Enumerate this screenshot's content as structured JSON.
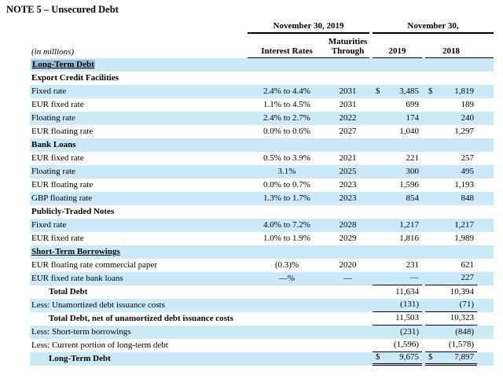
{
  "title": "NOTE 5 – Unsecured Debt",
  "colors": {
    "row_blue": "#cce9f8",
    "text_highlight": "#98bcd4",
    "rule": "#000000"
  },
  "table": {
    "units_caption": "(in millions)",
    "currency_symbol": "$",
    "group_headers": [
      {
        "label": "November 30, 2019"
      },
      {
        "label": "November 30,"
      }
    ],
    "columns": [
      "Interest Rates",
      "Maturities Through",
      "2019",
      "2018"
    ],
    "rows": [
      {
        "label": "Long-Term Debt",
        "rates": "",
        "maturity": "",
        "v2019": "",
        "v2018": "",
        "bold": true,
        "underline": true,
        "highlight": true
      },
      {
        "label": "Export Credit Facilities",
        "rates": "",
        "maturity": "",
        "v2019": "",
        "v2018": "",
        "bold": true
      },
      {
        "label": "Fixed rate",
        "rates": "2.4% to 4.4%",
        "maturity": "2031",
        "v2019": "3,485",
        "v2018": "1,819",
        "dollar": true
      },
      {
        "label": "EUR fixed rate",
        "rates": "1.1% to 4.5%",
        "maturity": "2031",
        "v2019": "699",
        "v2018": "189"
      },
      {
        "label": "Floating rate",
        "rates": "2.4% to 2.7%",
        "maturity": "2022",
        "v2019": "174",
        "v2018": "240"
      },
      {
        "label": "EUR floating rate",
        "rates": "0.0% to 0.6%",
        "maturity": "2027",
        "v2019": "1,040",
        "v2018": "1,297"
      },
      {
        "label": "Bank Loans",
        "rates": "",
        "maturity": "",
        "v2019": "",
        "v2018": "",
        "bold": true
      },
      {
        "label": "EUR fixed rate",
        "rates": "0.5% to 3.9%",
        "maturity": "2021",
        "v2019": "221",
        "v2018": "257"
      },
      {
        "label": "Floating rate",
        "rates": "3.1%",
        "maturity": "2025",
        "v2019": "300",
        "v2018": "495"
      },
      {
        "label": "EUR floating rate",
        "rates": "0.0% to 0.7%",
        "maturity": "2023",
        "v2019": "1,596",
        "v2018": "1,193"
      },
      {
        "label": "GBP floating rate",
        "rates": "1.3% to 1.7%",
        "maturity": "2023",
        "v2019": "854",
        "v2018": "848"
      },
      {
        "label": "Publicly-Traded Notes",
        "rates": "",
        "maturity": "",
        "v2019": "",
        "v2018": "",
        "bold": true
      },
      {
        "label": "Fixed rate",
        "rates": "4.0% to 7.2%",
        "maturity": "2028",
        "v2019": "1,217",
        "v2018": "1,217"
      },
      {
        "label": "EUR fixed rate",
        "rates": "1.0% to 1.9%",
        "maturity": "2029",
        "v2019": "1,816",
        "v2018": "1,989"
      },
      {
        "label": "Short-Term Borrowings",
        "rates": "",
        "maturity": "",
        "v2019": "",
        "v2018": "",
        "bold": true,
        "underline": true
      },
      {
        "label": "EUR floating rate commercial paper",
        "rates": "(0.3)%",
        "maturity": "2020",
        "v2019": "231",
        "v2018": "621"
      },
      {
        "label": "EUR fixed rate bank loans",
        "rates": "—%",
        "maturity": "—",
        "v2019": "—",
        "v2018": "227",
        "rule": "single"
      },
      {
        "label": "Total Debt",
        "rates": "",
        "maturity": "",
        "v2019": "11,634",
        "v2018": "10,394",
        "bold": true,
        "indent": true
      },
      {
        "label": "Less: Unamortized debt issuance costs",
        "rates": "",
        "maturity": "",
        "v2019": "(131)",
        "v2018": "(71)",
        "rule": "single"
      },
      {
        "label": "Total Debt, net of unamortized debt issuance costs",
        "rates": "",
        "maturity": "",
        "v2019": "11,503",
        "v2018": "10,323",
        "bold": true,
        "indent": true,
        "rule": "single"
      },
      {
        "label": "Less: Short-term borrowings",
        "rates": "",
        "maturity": "",
        "v2019": "(231)",
        "v2018": "(848)"
      },
      {
        "label": "Less: Current portion of long-term debt",
        "rates": "",
        "maturity": "",
        "v2019": "(1,596)",
        "v2018": "(1,578)",
        "rule": "single"
      },
      {
        "label": "Long-Term Debt",
        "rates": "",
        "maturity": "",
        "v2019": "9,675",
        "v2018": "7,897",
        "bold": true,
        "indent": true,
        "dollar": true,
        "rule": "double"
      }
    ]
  }
}
